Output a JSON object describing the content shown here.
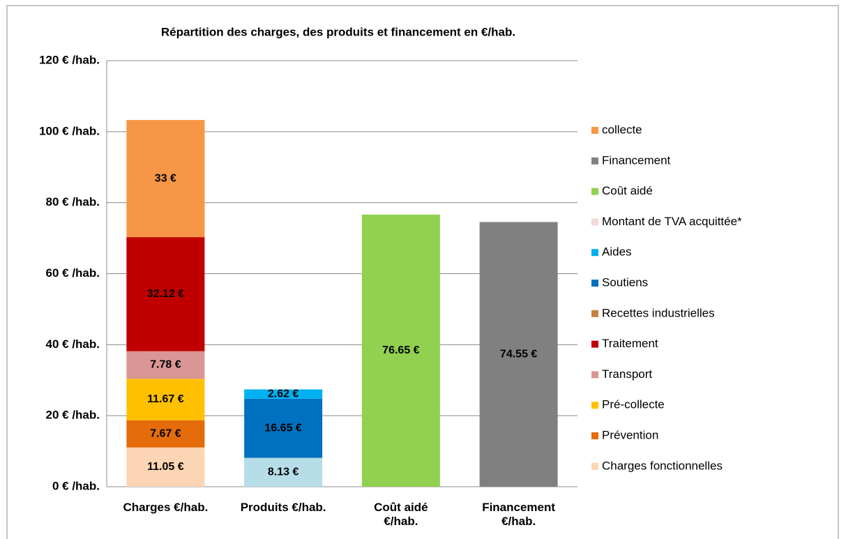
{
  "chart_data": {
    "type": "stacked_bar",
    "title": "Répartition des charges, des produits et financement en €/hab.",
    "categories": [
      "Charges €/hab.",
      "Produits €/hab.",
      "Coût aidé €/hab.",
      "Financement €/hab."
    ],
    "ylim": [
      0,
      120
    ],
    "yticks": [
      {
        "value": 0,
        "label": "0 € /hab."
      },
      {
        "value": 20,
        "label": "20 € /hab."
      },
      {
        "value": 40,
        "label": "40 € /hab."
      },
      {
        "value": 60,
        "label": "60 € /hab."
      },
      {
        "value": 80,
        "label": "80 € /hab."
      },
      {
        "value": 100,
        "label": "100 € /hab."
      },
      {
        "value": 120,
        "label": "120 € /hab."
      }
    ],
    "grid": true,
    "legend": "right",
    "series": [
      {
        "name": "Charges fonctionnelles",
        "color": "#fcd5b4",
        "values": [
          11.05,
          null,
          null,
          null
        ],
        "value_labels": [
          "11.05 €",
          null,
          null,
          null
        ]
      },
      {
        "name": "Prévention",
        "color": "#e46c0a",
        "values": [
          7.67,
          null,
          null,
          null
        ],
        "value_labels": [
          "7.67 €",
          null,
          null,
          null
        ]
      },
      {
        "name": "Pré-collecte",
        "color": "#ffc000",
        "values": [
          11.67,
          null,
          null,
          null
        ],
        "value_labels": [
          "11.67 €",
          null,
          null,
          null
        ]
      },
      {
        "name": "Transport",
        "color": "#da9694",
        "values": [
          7.78,
          null,
          null,
          null
        ],
        "value_labels": [
          "7.78 €",
          null,
          null,
          null
        ]
      },
      {
        "name": "Traitement",
        "color": "#c00000",
        "values": [
          32.12,
          null,
          null,
          null
        ],
        "value_labels": [
          "32.12 €",
          null,
          null,
          null
        ]
      },
      {
        "name": "Recettes industrielles",
        "color": "#c8803f",
        "bar_color": "#b7dde8",
        "values": [
          null,
          8.13,
          null,
          null
        ],
        "value_labels": [
          null,
          "8.13 €",
          null,
          null
        ]
      },
      {
        "name": "Soutiens",
        "color": "#0070c0",
        "values": [
          null,
          16.65,
          null,
          null
        ],
        "value_labels": [
          null,
          "16.65 €",
          null,
          null
        ]
      },
      {
        "name": "Aides",
        "color": "#00b0f0",
        "values": [
          null,
          2.62,
          null,
          null
        ],
        "value_labels": [
          null,
          "2.62 €",
          null,
          null
        ]
      },
      {
        "name": "Montant de TVA acquittée*",
        "color": "#f2dcdb",
        "values": [
          null,
          null,
          null,
          null
        ]
      },
      {
        "name": "Coût aidé",
        "color": "#92d050",
        "values": [
          null,
          null,
          76.65,
          null
        ],
        "value_labels": [
          null,
          null,
          "76.65 €",
          null
        ]
      },
      {
        "name": "Financement",
        "color": "#808080",
        "values": [
          null,
          null,
          null,
          74.55
        ],
        "value_labels": [
          null,
          null,
          null,
          "74.55 €"
        ]
      },
      {
        "name": "collecte",
        "color": "#f79646",
        "values": [
          33,
          null,
          null,
          null
        ],
        "value_labels": [
          "33 €",
          null,
          null,
          null
        ]
      }
    ]
  }
}
